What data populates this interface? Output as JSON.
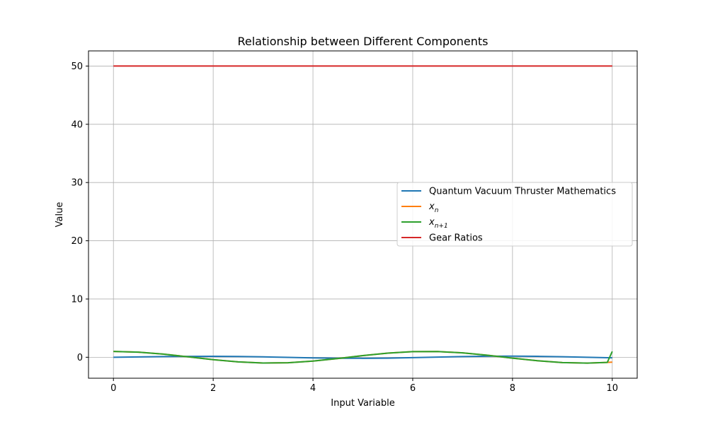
{
  "chart_data": {
    "type": "line",
    "title": "Relationship between Different Components",
    "xlabel": "Input Variable",
    "ylabel": "Value",
    "xlim": [
      -0.5,
      10.5
    ],
    "ylim": [
      -3.6,
      52.6
    ],
    "xticks": [
      0,
      2,
      4,
      6,
      8,
      10
    ],
    "yticks": [
      0,
      10,
      20,
      30,
      40,
      50
    ],
    "grid": true,
    "legend": "center-right",
    "series": [
      {
        "name": "Quantum Vacuum Thruster Mathematics",
        "color": "#1f77b4",
        "x": [
          0,
          0.5,
          1,
          1.5,
          2,
          2.5,
          3,
          3.5,
          4,
          4.5,
          5,
          5.5,
          6,
          6.5,
          7,
          7.5,
          8,
          8.5,
          9,
          9.5,
          10
        ],
        "y": [
          0.0,
          0.06,
          0.12,
          0.15,
          0.17,
          0.14,
          0.07,
          -0.02,
          -0.11,
          -0.17,
          -0.18,
          -0.15,
          -0.07,
          0.03,
          0.12,
          0.18,
          0.19,
          0.16,
          0.08,
          -0.01,
          -0.1
        ]
      },
      {
        "name": "x_n",
        "label_main": "x",
        "label_sub": "n",
        "color": "#ff7f0e",
        "x": [
          0,
          0.5,
          1,
          1.5,
          2,
          2.5,
          3,
          3.5,
          4,
          4.5,
          5,
          5.5,
          6,
          6.5,
          7,
          7.5,
          8,
          8.5,
          9,
          9.5,
          9.9,
          10
        ],
        "y": [
          1.0,
          0.88,
          0.54,
          0.07,
          -0.42,
          -0.8,
          -0.99,
          -0.94,
          -0.65,
          -0.21,
          0.28,
          0.71,
          0.96,
          0.98,
          0.75,
          0.35,
          -0.15,
          -0.6,
          -0.91,
          -1.0,
          -0.89,
          -0.84
        ]
      },
      {
        "name": "x_{n+1}",
        "label_main": "x",
        "label_sub": "n+1",
        "color": "#2ca02c",
        "x": [
          0,
          0.5,
          1,
          1.5,
          2,
          2.5,
          3,
          3.5,
          4,
          4.5,
          5,
          5.5,
          6,
          6.5,
          7,
          7.5,
          8,
          8.5,
          9,
          9.5,
          9.9,
          10
        ],
        "y": [
          1.0,
          0.88,
          0.54,
          0.07,
          -0.42,
          -0.8,
          -0.99,
          -0.94,
          -0.65,
          -0.21,
          0.28,
          0.71,
          0.96,
          0.98,
          0.75,
          0.35,
          -0.15,
          -0.6,
          -0.91,
          -1.0,
          -0.89,
          1.0
        ]
      },
      {
        "name": "Gear Ratios",
        "color": "#d62728",
        "x": [
          0,
          10
        ],
        "y": [
          50,
          50
        ]
      }
    ]
  }
}
